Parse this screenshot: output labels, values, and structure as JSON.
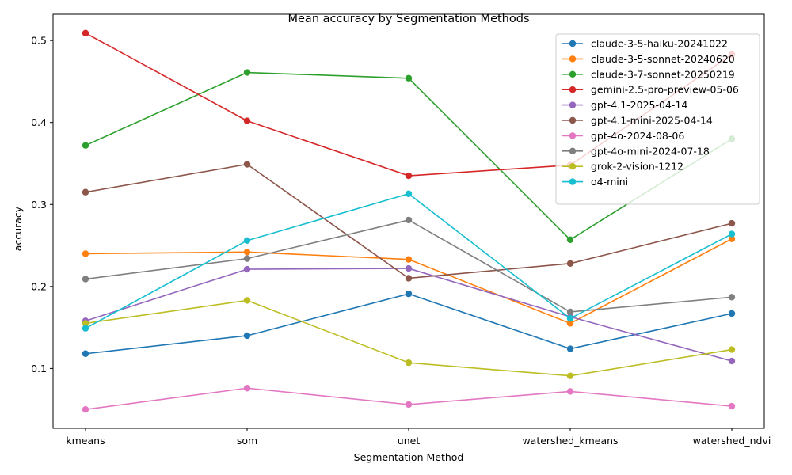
{
  "chart_data": {
    "type": "line",
    "title": "Mean accuracy by Segmentation Methods",
    "xlabel": "Segmentation Method",
    "ylabel": "accuracy",
    "categories": [
      "kmeans",
      "som",
      "unet",
      "watershed_kmeans",
      "watershed_ndvi"
    ],
    "ylim": [
      0.027,
      0.532
    ],
    "yticks": [
      "0.1",
      "0.2",
      "0.3",
      "0.4",
      "0.5"
    ],
    "grid": false,
    "legend_position": "top-right",
    "series": [
      {
        "name": "claude-3-5-haiku-20241022",
        "color": "#1f77b4",
        "values": [
          0.118,
          0.14,
          0.191,
          0.124,
          0.167
        ]
      },
      {
        "name": "claude-3-5-sonnet-20240620",
        "color": "#ff7f0e",
        "values": [
          0.24,
          0.242,
          0.233,
          0.155,
          0.258
        ]
      },
      {
        "name": "claude-3-7-sonnet-20250219",
        "color": "#2ca02c",
        "values": [
          0.372,
          0.461,
          0.454,
          0.257,
          0.38
        ]
      },
      {
        "name": "gemini-2.5-pro-preview-05-06",
        "color": "#d62728",
        "values": [
          0.509,
          0.402,
          0.335,
          0.348,
          0.483
        ]
      },
      {
        "name": "gpt-4.1-2025-04-14",
        "color": "#9467bd",
        "values": [
          0.158,
          0.221,
          0.222,
          0.163,
          0.109
        ]
      },
      {
        "name": "gpt-4.1-mini-2025-04-14",
        "color": "#8c564b",
        "values": [
          0.315,
          0.349,
          0.21,
          0.228,
          0.277
        ]
      },
      {
        "name": "gpt-4o-2024-08-06",
        "color": "#e377c2",
        "values": [
          0.05,
          0.076,
          0.056,
          0.072,
          0.054
        ]
      },
      {
        "name": "gpt-4o-mini-2024-07-18",
        "color": "#7f7f7f",
        "values": [
          0.209,
          0.234,
          0.281,
          0.169,
          0.187
        ]
      },
      {
        "name": "grok-2-vision-1212",
        "color": "#bcbd22",
        "values": [
          0.155,
          0.183,
          0.107,
          0.091,
          0.123
        ]
      },
      {
        "name": "o4-mini",
        "color": "#17becf",
        "values": [
          0.149,
          0.256,
          0.313,
          0.161,
          0.264
        ]
      }
    ]
  }
}
